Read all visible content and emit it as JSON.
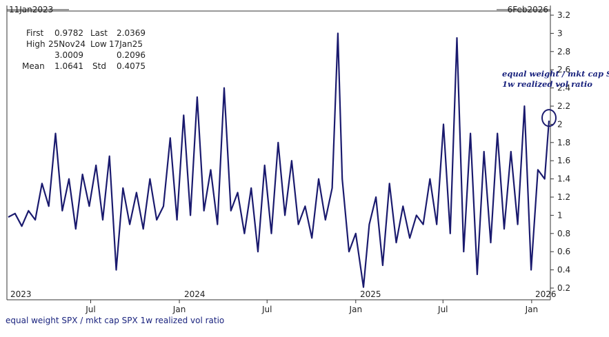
{
  "header": {
    "start_date": "11Jan2023",
    "end_date": "6Feb2026"
  },
  "stats": {
    "first_label": "First",
    "first_value": "0.9782",
    "last_label": "Last",
    "last_value": "2.0369",
    "high_label": "High",
    "high_date": "25Nov24",
    "high_value": "3.0009",
    "low_label": "Low",
    "low_date": "17Jan25",
    "low_value": "0.2096",
    "mean_label": "Mean",
    "mean_value": "1.0641",
    "std_label": "Std",
    "std_value": "0.4075"
  },
  "annotation": {
    "line1": "equal weight / mkt cap SPX",
    "line2": "1w realized vol ratio"
  },
  "footer": {
    "caption": "equal weight SPX / mkt cap SPX 1w realized vol ratio"
  },
  "colors": {
    "series": "#1a1a6e",
    "axis": "#333333"
  },
  "chart_data": {
    "type": "line",
    "title": "",
    "xlabel": "",
    "ylabel": "",
    "ylim": [
      0.1,
      3.2
    ],
    "yticks": [
      0.2,
      0.4,
      0.6,
      0.8,
      1,
      1.2,
      1.4,
      1.6,
      1.8,
      2,
      2.2,
      2.4,
      2.6,
      2.8,
      3,
      3.2
    ],
    "xlim": [
      "2023-01-11",
      "2026-02-06"
    ],
    "year_labels": [
      "2023",
      "2024",
      "2025",
      "2026"
    ],
    "month_ticks": [
      {
        "label": "Jul",
        "date": "2023-07-01"
      },
      {
        "label": "Jan",
        "date": "2024-01-01"
      },
      {
        "label": "Jul",
        "date": "2024-07-01"
      },
      {
        "label": "Jan",
        "date": "2025-01-01"
      },
      {
        "label": "Jul",
        "date": "2025-07-01"
      },
      {
        "label": "Jan",
        "date": "2026-01-01"
      }
    ],
    "series": [
      {
        "values": [
          [
            "2023-01-11",
            0.98
          ],
          [
            "2023-01-25",
            1.02
          ],
          [
            "2023-02-08",
            0.88
          ],
          [
            "2023-02-22",
            1.05
          ],
          [
            "2023-03-08",
            0.95
          ],
          [
            "2023-03-22",
            1.35
          ],
          [
            "2023-04-05",
            1.1
          ],
          [
            "2023-04-19",
            1.9
          ],
          [
            "2023-05-03",
            1.05
          ],
          [
            "2023-05-17",
            1.4
          ],
          [
            "2023-05-31",
            0.85
          ],
          [
            "2023-06-14",
            1.45
          ],
          [
            "2023-06-28",
            1.1
          ],
          [
            "2023-07-12",
            1.55
          ],
          [
            "2023-07-26",
            0.95
          ],
          [
            "2023-08-09",
            1.65
          ],
          [
            "2023-08-23",
            0.4
          ],
          [
            "2023-09-06",
            1.3
          ],
          [
            "2023-09-20",
            0.9
          ],
          [
            "2023-10-04",
            1.25
          ],
          [
            "2023-10-18",
            0.85
          ],
          [
            "2023-11-01",
            1.4
          ],
          [
            "2023-11-15",
            0.95
          ],
          [
            "2023-11-29",
            1.1
          ],
          [
            "2023-12-13",
            1.85
          ],
          [
            "2023-12-27",
            0.95
          ],
          [
            "2024-01-10",
            2.1
          ],
          [
            "2024-01-24",
            1.0
          ],
          [
            "2024-02-07",
            2.3
          ],
          [
            "2024-02-21",
            1.05
          ],
          [
            "2024-03-06",
            1.5
          ],
          [
            "2024-03-20",
            0.9
          ],
          [
            "2024-04-03",
            2.4
          ],
          [
            "2024-04-17",
            1.05
          ],
          [
            "2024-05-01",
            1.25
          ],
          [
            "2024-05-15",
            0.8
          ],
          [
            "2024-05-29",
            1.3
          ],
          [
            "2024-06-12",
            0.6
          ],
          [
            "2024-06-26",
            1.55
          ],
          [
            "2024-07-10",
            0.8
          ],
          [
            "2024-07-24",
            1.8
          ],
          [
            "2024-08-07",
            1.0
          ],
          [
            "2024-08-21",
            1.6
          ],
          [
            "2024-09-04",
            0.9
          ],
          [
            "2024-09-18",
            1.1
          ],
          [
            "2024-10-02",
            0.75
          ],
          [
            "2024-10-16",
            1.4
          ],
          [
            "2024-10-30",
            0.95
          ],
          [
            "2024-11-13",
            1.3
          ],
          [
            "2024-11-25",
            3.0
          ],
          [
            "2024-12-04",
            1.4
          ],
          [
            "2024-12-18",
            0.6
          ],
          [
            "2025-01-01",
            0.8
          ],
          [
            "2025-01-17",
            0.21
          ],
          [
            "2025-01-29",
            0.9
          ],
          [
            "2025-02-12",
            1.2
          ],
          [
            "2025-02-26",
            0.45
          ],
          [
            "2025-03-12",
            1.35
          ],
          [
            "2025-03-26",
            0.7
          ],
          [
            "2025-04-09",
            1.1
          ],
          [
            "2025-04-23",
            0.75
          ],
          [
            "2025-05-07",
            1.0
          ],
          [
            "2025-05-21",
            0.9
          ],
          [
            "2025-06-04",
            1.4
          ],
          [
            "2025-06-18",
            0.9
          ],
          [
            "2025-07-02",
            2.0
          ],
          [
            "2025-07-16",
            0.8
          ],
          [
            "2025-07-30",
            2.95
          ],
          [
            "2025-08-13",
            0.6
          ],
          [
            "2025-08-27",
            1.9
          ],
          [
            "2025-09-10",
            0.35
          ],
          [
            "2025-09-24",
            1.7
          ],
          [
            "2025-10-08",
            0.7
          ],
          [
            "2025-10-22",
            1.9
          ],
          [
            "2025-11-05",
            0.85
          ],
          [
            "2025-11-19",
            1.7
          ],
          [
            "2025-12-03",
            0.9
          ],
          [
            "2025-12-17",
            2.2
          ],
          [
            "2025-12-31",
            0.4
          ],
          [
            "2026-01-14",
            1.5
          ],
          [
            "2026-01-28",
            1.4
          ],
          [
            "2026-02-06",
            2.04
          ]
        ]
      }
    ],
    "grid": false,
    "legend": "none"
  }
}
